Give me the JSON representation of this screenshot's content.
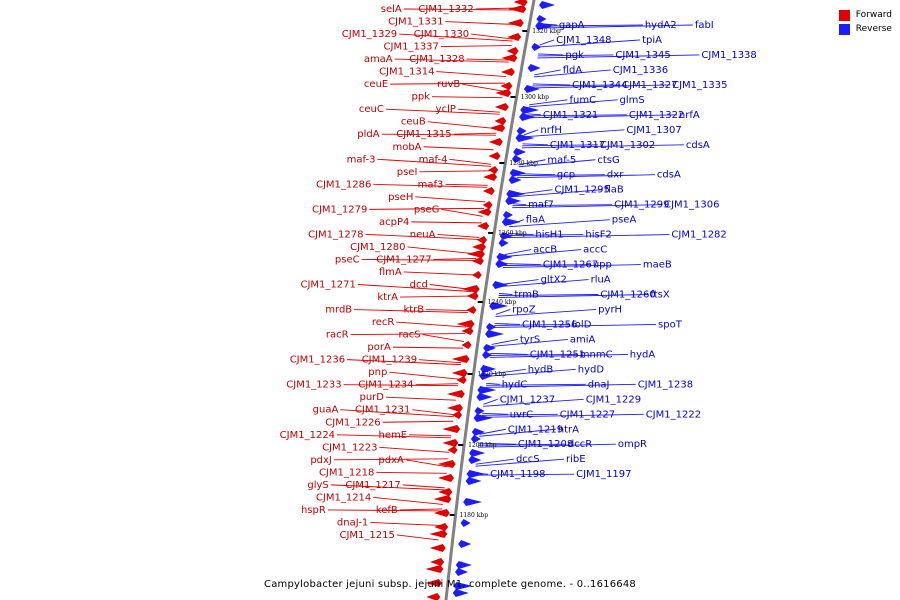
{
  "caption": "Campylobacter jejuni subsp. jejuni M1, complete genome. - 0..1616648",
  "colors": {
    "forward": "#e00000",
    "reverse": "#1c1cff",
    "backbone": "#808080",
    "tick": "#000000"
  },
  "legend": [
    {
      "label": "Forward",
      "color": "#e00000"
    },
    {
      "label": "Reverse",
      "color": "#1c1cff"
    }
  ],
  "ticks": [
    "1320 kbp",
    "1300 kbp",
    "1280 kbp",
    "1260 kbp",
    "1240 kbp",
    "1220 kbp",
    "1200 kbp",
    "1180 kbp"
  ],
  "forward_labels": [
    "CJM1_1332",
    "selA",
    "CJM1_1331",
    "CJM1_1330",
    "CJM1_1329",
    "CJM1_1337",
    "CJM1_1328",
    "amaA",
    "CJM1_1314",
    "ruvB",
    "ceuE",
    "ppk",
    "yclP",
    "ceuC",
    "ceuB",
    "CJM1_1315",
    "pldA",
    "mobA",
    "maf-4",
    "maf-3",
    "pseI",
    "maf3",
    "CJM1_1286",
    "pseH",
    "pseG",
    "CJM1_1279",
    "acpP4",
    "neuA",
    "CJM1_1278",
    "CJM1_1280",
    "CJM1_1277",
    "pseC",
    "flmA",
    "dcd",
    "CJM1_1271",
    "ktrA",
    "ktrB",
    "mrdB",
    "recR",
    "racS",
    "racR",
    "porA",
    "CJM1_1239",
    "CJM1_1236",
    "pnp",
    "CJM1_1234",
    "CJM1_1233",
    "purD",
    "CJM1_1231",
    "guaA",
    "CJM1_1226",
    "hemE",
    "CJM1_1224",
    "CJM1_1223",
    "pdxA",
    "pdxJ",
    "CJM1_1218",
    "CJM1_1217",
    "glyS",
    "CJM1_1214",
    "kefB",
    "hspR",
    "dnaJ-1",
    "CJM1_1215"
  ],
  "reverse_labels": [
    "gapA",
    "hydA2",
    "fabI",
    "CJM1_1348",
    "tpiA",
    "pgk",
    "CJM1_1345",
    "CJM1_1338",
    "fldA",
    "CJM1_1336",
    "CJM1_1344",
    "CJM1_1327",
    "CJM1_1335",
    "fumC",
    "glmS",
    "CJM1_1321",
    "CJM1_1322",
    "nrfA",
    "nrfH",
    "CJM1_1307",
    "CJM1_1317",
    "CJM1_1302",
    "cdsA",
    "maf-5",
    "ctsG",
    "gcp",
    "dxr",
    "cdsA",
    "CJM1_1295",
    "flaB",
    "maf7",
    "CJM1_1299",
    "CJM1_1306",
    "flaA",
    "pseA",
    "hisH1",
    "hisF2",
    "CJM1_1282",
    "accB",
    "accC",
    "CJM1_1267",
    "upp",
    "maeB",
    "gltX2",
    "rluA",
    "trmB",
    "CJM1_1260",
    "ftsX",
    "rpoZ",
    "pyrH",
    "CJM1_1256",
    "lolD",
    "spoT",
    "tyrS",
    "amiA",
    "CJM1_1251",
    "mnmC",
    "hydA",
    "hydB",
    "hydD",
    "hydC",
    "dnaJ",
    "CJM1_1238",
    "CJM1_1237",
    "CJM1_1229",
    "uvrC",
    "CJM1_1227",
    "CJM1_1222",
    "CJM1_1219",
    "htrA",
    "CJM1_1208",
    "dccR",
    "ompR",
    "dccS",
    "ribE",
    "CJM1_1198",
    "CJM1_1197"
  ]
}
